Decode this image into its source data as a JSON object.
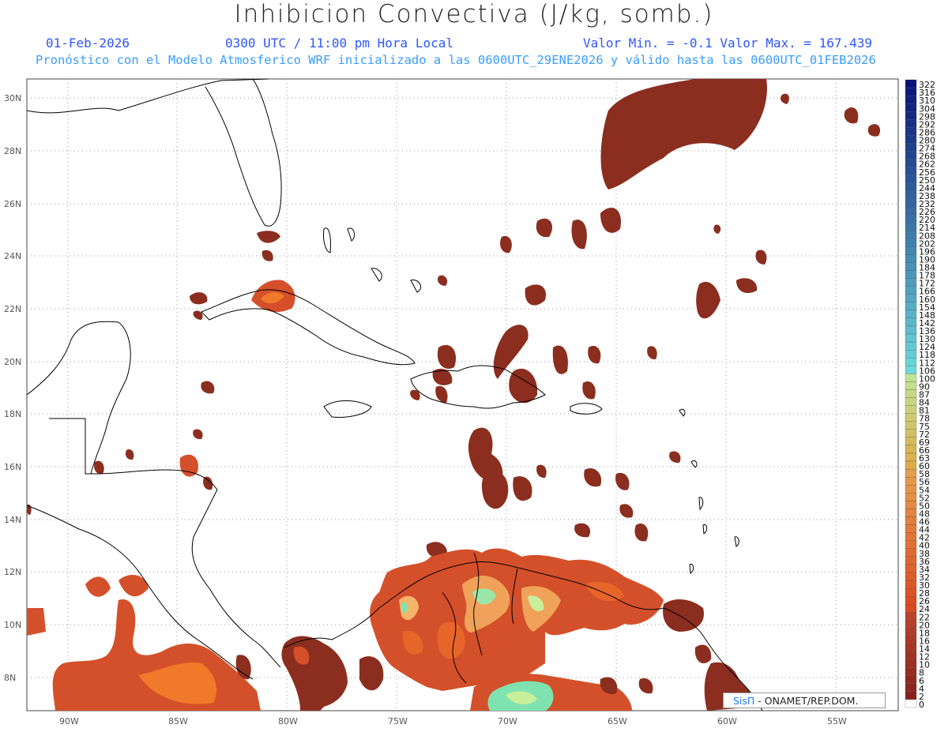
{
  "header": {
    "title": "Inhibicion Convectiva (J/kg, somb.)",
    "date": "01-Feb-2026",
    "time": "0300 UTC / 11:00 pm Hora Local",
    "minmax": "Valor Min. = -0.1  Valor Max. = 167.439",
    "run_info": "Pronóstico con el Modelo Atmosferico WRF inicializado a las 0600UTC_29ENE2026 y válido hasta las  0600UTC_01FEB2026"
  },
  "axes": {
    "lat_labels": [
      "30N",
      "28N",
      "26N",
      "24N",
      "22N",
      "20N",
      "18N",
      "16N",
      "14N",
      "12N",
      "10N",
      "8N"
    ],
    "lon_labels": [
      "90W",
      "85W",
      "80W",
      "75W",
      "70W",
      "65W",
      "60W",
      "55W"
    ]
  },
  "colorbar": {
    "labels": [
      "322",
      "316",
      "310",
      "304",
      "298",
      "292",
      "286",
      "280",
      "274",
      "268",
      "262",
      "256",
      "250",
      "244",
      "238",
      "232",
      "226",
      "220",
      "214",
      "208",
      "202",
      "196",
      "190",
      "184",
      "178",
      "172",
      "166",
      "160",
      "154",
      "148",
      "142",
      "136",
      "130",
      "124",
      "118",
      "112",
      "106",
      "100",
      "90",
      "87",
      "84",
      "81",
      "78",
      "75",
      "72",
      "69",
      "66",
      "63",
      "60",
      "58",
      "56",
      "54",
      "52",
      "50",
      "48",
      "46",
      "44",
      "42",
      "40",
      "38",
      "36",
      "34",
      "32",
      "30",
      "28",
      "26",
      "24",
      "22",
      "20",
      "18",
      "16",
      "14",
      "12",
      "10",
      "8",
      "6",
      "4",
      "2",
      "0"
    ]
  },
  "credit": {
    "brand": "SisΠ",
    "text": " - ONAMET/REP.DOM."
  },
  "colors": {
    "accent_blue": "#2f56ff",
    "cin_dark": "#8b2e1f",
    "cin_orange": "#e8652a",
    "cin_green": "#7fe3b0"
  }
}
